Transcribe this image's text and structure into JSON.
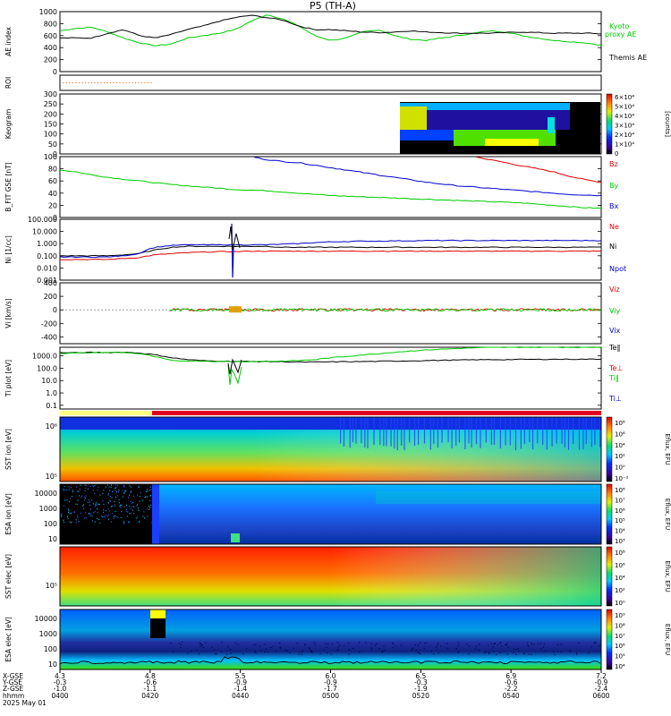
{
  "title": "P5 (TH-A)",
  "colors": {
    "black": "#000000",
    "red": "#e00000",
    "green": "#00cc00",
    "blue": "#0000cc",
    "orange": "#ff6000",
    "yellow": "#ffff00"
  },
  "chart_data": [
    {
      "type": "line",
      "id": "ae",
      "ylabel": "AE index",
      "ylim": [
        0,
        1000
      ],
      "yticks": [
        "1000",
        "800",
        "600",
        "400",
        "200",
        "0"
      ],
      "series": [
        {
          "name": "Kyoto proxy AE",
          "color": "#00cc00",
          "values": [
            680,
            720,
            740,
            660,
            560,
            480,
            430,
            460,
            560,
            600,
            640,
            700,
            840,
            950,
            880,
            760,
            600,
            520,
            560,
            660,
            700,
            600,
            540,
            520,
            560,
            600,
            640,
            680,
            660,
            600,
            560,
            520,
            500,
            480,
            440
          ]
        },
        {
          "name": "Themis AE",
          "color": "#000000",
          "values": [
            560,
            560,
            560,
            640,
            700,
            600,
            560,
            620,
            700,
            760,
            840,
            900,
            940,
            900,
            860,
            760,
            700,
            700,
            680,
            660,
            650,
            660,
            680,
            660,
            650,
            640,
            640,
            640,
            650,
            660,
            650,
            640,
            640,
            640,
            630
          ]
        }
      ]
    },
    {
      "type": "scatter",
      "id": "roi",
      "ylabel": "ROI",
      "series": [
        {
          "name": "",
          "color": "#ff6000",
          "x_range": [
            0.0,
            0.09
          ]
        }
      ]
    },
    {
      "type": "heatmap",
      "id": "keogram",
      "ylabel": "Keogram",
      "ylim": [
        0,
        300
      ],
      "yticks": [
        "300",
        "250",
        "200",
        "150",
        "100",
        "50",
        "0"
      ],
      "colorbar": {
        "label": "[counts]",
        "ticks": [
          "6×10⁴",
          "5×10⁴",
          "4×10⁴",
          "3×10⁴",
          "2×10⁴",
          "1×10⁴",
          "0"
        ]
      }
    },
    {
      "type": "line",
      "id": "bfield",
      "ylabel": "B_FIT GSE [nT]",
      "ylim": [
        0,
        100
      ],
      "yticks": [
        "100",
        "80",
        "60",
        "40",
        "20",
        "0"
      ],
      "series": [
        {
          "name": "Bz",
          "color": "#e00000",
          "values": [
            null,
            null,
            null,
            null,
            null,
            null,
            null,
            null,
            null,
            null,
            null,
            null,
            null,
            null,
            null,
            null,
            null,
            null,
            null,
            null,
            null,
            null,
            null,
            null,
            null,
            null,
            100,
            95,
            90,
            85,
            80,
            75,
            68,
            62,
            58
          ]
        },
        {
          "name": "By",
          "color": "#00cc00",
          "values": [
            78,
            75,
            70,
            66,
            63,
            60,
            57,
            54,
            52,
            50,
            48,
            46,
            45,
            44,
            42,
            40,
            38,
            36,
            35,
            34,
            33,
            32,
            31,
            30,
            29,
            28,
            27,
            26,
            25,
            24,
            22,
            20,
            18,
            16,
            15
          ]
        },
        {
          "name": "Bx",
          "color": "#0000cc",
          "values": [
            null,
            null,
            null,
            null,
            null,
            null,
            null,
            null,
            null,
            null,
            null,
            null,
            100,
            95,
            92,
            90,
            86,
            82,
            78,
            74,
            70,
            66,
            62,
            58,
            55,
            52,
            50,
            48,
            46,
            44,
            42,
            40,
            38,
            37,
            36
          ]
        }
      ]
    },
    {
      "type": "line",
      "id": "density",
      "ylabel": "Ni [1/cc]",
      "ylog": true,
      "ylim": [
        0.001,
        100
      ],
      "yticks": [
        "100.000",
        "10.000",
        "1.000",
        "0.100",
        "0.010",
        "0.001"
      ],
      "series": [
        {
          "name": "Ne",
          "color": "#e00000",
          "values": [
            0.05,
            0.05,
            0.05,
            0.05,
            0.06,
            0.07,
            0.12,
            0.15,
            0.18,
            0.2,
            0.22,
            0.22,
            0.24,
            0.24,
            0.24,
            0.24,
            0.24,
            0.24,
            0.24,
            0.24,
            0.24,
            0.24,
            0.24,
            0.24,
            0.24,
            0.24,
            0.24,
            0.24,
            0.24,
            0.24,
            0.24,
            0.24,
            0.24,
            0.24,
            0.24
          ]
        },
        {
          "name": "Ni",
          "color": "#000000",
          "values": [
            0.1,
            0.1,
            0.1,
            0.1,
            0.12,
            0.15,
            0.3,
            0.5,
            0.6,
            0.6,
            0.6,
            0.6,
            0.6,
            0.6,
            0.5,
            0.5,
            0.5,
            0.5,
            0.5,
            0.5,
            0.5,
            0.5,
            0.5,
            0.5,
            0.5,
            0.5,
            0.5,
            0.5,
            0.5,
            0.5,
            0.5,
            0.5,
            0.5,
            0.5,
            0.5
          ]
        },
        {
          "name": "Npot",
          "color": "#0000cc",
          "values": [
            0.08,
            0.08,
            0.08,
            0.08,
            0.1,
            0.15,
            0.5,
            0.7,
            0.8,
            0.8,
            0.8,
            0.8,
            0.8,
            0.8,
            0.9,
            1.0,
            1.2,
            1.4,
            1.5,
            1.6,
            1.6,
            1.7,
            1.7,
            1.8,
            1.8,
            1.8,
            1.8,
            1.8,
            1.8,
            1.8,
            1.8,
            1.8,
            1.8,
            1.8,
            1.8
          ]
        }
      ]
    },
    {
      "type": "line",
      "id": "velocity",
      "ylabel": "Vi [km/s]",
      "ylim": [
        -500,
        400
      ],
      "yticks": [
        "400",
        "200",
        "0",
        "-200",
        "-400"
      ],
      "series": [
        {
          "name": "Viz",
          "color": "#e00000",
          "values": [
            0
          ]
        },
        {
          "name": "Viy",
          "color": "#00cc00",
          "values": [
            0
          ]
        },
        {
          "name": "Vix",
          "color": "#0000cc",
          "values": [
            0
          ]
        }
      ]
    },
    {
      "type": "line",
      "id": "temperature",
      "ylabel": "Ti plot [eV]",
      "ylog": true,
      "ylim": [
        0.05,
        5000
      ],
      "yticks": [
        "1000.0",
        "100.0",
        "10.0",
        "1.0",
        "0.1"
      ],
      "series": [
        {
          "name": "Te‖",
          "color": "#000000",
          "values": [
            1800,
            1800,
            1900,
            1900,
            2000,
            1700,
            1200,
            700,
            500,
            400,
            380,
            360,
            350,
            350,
            340,
            320,
            320,
            330,
            340,
            350,
            360,
            380,
            400,
            420,
            440,
            460,
            480,
            500,
            500,
            520,
            520,
            540,
            540,
            540,
            550
          ]
        },
        {
          "name": "Te⊥",
          "color": "#e00000",
          "values": []
        },
        {
          "name": "Ti‖",
          "color": "#00cc00",
          "values": [
            1600,
            1700,
            1800,
            1900,
            1900,
            1500,
            800,
            400,
            400,
            380,
            360,
            350,
            350,
            360,
            380,
            420,
            500,
            700,
            900,
            1200,
            1500,
            2000,
            2500,
            3000,
            3500,
            4000,
            4500,
            4800,
            5000,
            5000,
            5000,
            5000,
            5000,
            5000,
            5000
          ]
        },
        {
          "name": "Ti⊥",
          "color": "#0000cc",
          "values": []
        }
      ]
    },
    {
      "type": "heatmap",
      "id": "sst_ion",
      "ylabel": "SST ion [eV]",
      "yticks": [
        "10⁶",
        "10⁵"
      ],
      "colorbar": {
        "label": "Eflux, EFU",
        "ticks": [
          "10⁸",
          "10⁶",
          "10⁴",
          "10²",
          "10⁰",
          "10⁻²"
        ]
      }
    },
    {
      "type": "heatmap",
      "id": "esa_ion",
      "ylabel": "ESA ion [eV]",
      "yticks": [
        "10000",
        "1000",
        "100",
        "10"
      ],
      "colorbar": {
        "label": "Eflux, EFU",
        "ticks": [
          "10⁸",
          "10⁷",
          "10⁶",
          "10⁵",
          "10⁴",
          "10³"
        ]
      }
    },
    {
      "type": "heatmap",
      "id": "sst_elec",
      "ylabel": "SST elec [eV]",
      "yticks": [
        "10⁵"
      ],
      "colorbar": {
        "label": "Eflux, EFU",
        "ticks": [
          "10⁸",
          "10⁶",
          "10⁴",
          "10²",
          "10⁰"
        ]
      }
    },
    {
      "type": "heatmap",
      "id": "esa_elec",
      "ylabel": "ESA elec [eV]",
      "yticks": [
        "10000",
        "1000",
        "100",
        "10"
      ],
      "colorbar": {
        "label": "Eflux, EFU",
        "ticks": [
          "10⁹",
          "10⁸",
          "10⁷",
          "10⁶",
          "10⁵",
          "10⁴"
        ]
      }
    }
  ],
  "xaxis": {
    "row_labels": [
      "X-GSE",
      "Y-GSE",
      "Z-GSE",
      "hhmm",
      "2025 May 01"
    ],
    "ticks": [
      {
        "x": "4.3",
        "y": "-0.3",
        "z": "-1.0",
        "t": "0400"
      },
      {
        "x": "4.8",
        "y": "-0.6",
        "z": "-1.1",
        "t": "0420"
      },
      {
        "x": "5.5",
        "y": "-0.9",
        "z": "-1.4",
        "t": "0440"
      },
      {
        "x": "6.0",
        "y": "-0.9",
        "z": "-1.7",
        "t": "0500"
      },
      {
        "x": "6.5",
        "y": "-0.3",
        "z": "-1.9",
        "t": "0520"
      },
      {
        "x": "6.9",
        "y": "-0.6",
        "z": "-2.2",
        "t": "0540"
      },
      {
        "x": "7.2",
        "y": "-0.9",
        "z": "-2.4",
        "t": "0600"
      }
    ]
  }
}
